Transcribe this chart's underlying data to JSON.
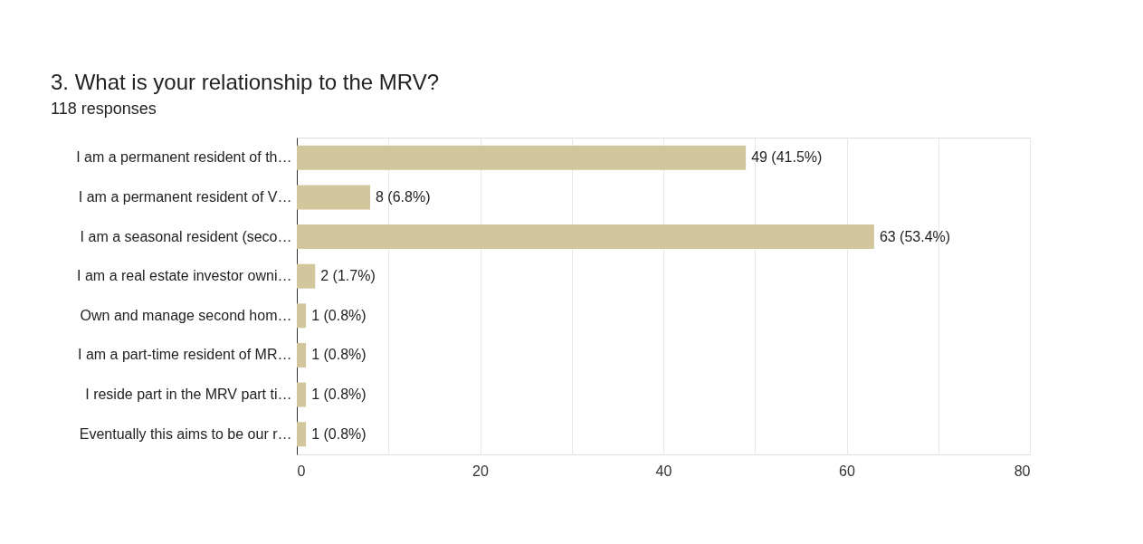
{
  "chart_data": {
    "type": "bar",
    "orientation": "horizontal",
    "title": "3. What is your relationship to the MRV?",
    "subtitle": "118 responses",
    "categories": [
      "I am a permanent resident of th…",
      "I am a permanent resident of V…",
      "I am a seasonal resident (seco…",
      "I am a real estate investor owni…",
      "Own and manage second hom…",
      "I am a part-time resident of MR…",
      "I reside part in the MRV part ti…",
      "Eventually this aims to be our r…"
    ],
    "values": [
      49,
      8,
      63,
      2,
      1,
      1,
      1,
      1
    ],
    "value_labels": [
      "49 (41.5%)",
      "8 (6.8%)",
      "63 (53.4%)",
      "2 (1.7%)",
      "1 (0.8%)",
      "1 (0.8%)",
      "1 (0.8%)",
      "1 (0.8%)"
    ],
    "color": "#d1c69c",
    "xlim": [
      0,
      80
    ],
    "xticks": [
      0,
      {
        "value": 10,
        "label": null
      },
      20,
      {
        "value": 30,
        "label": null
      },
      40,
      {
        "value": 50,
        "label": null
      },
      60,
      {
        "value": 70,
        "label": null
      },
      80
    ],
    "grid": "x"
  }
}
